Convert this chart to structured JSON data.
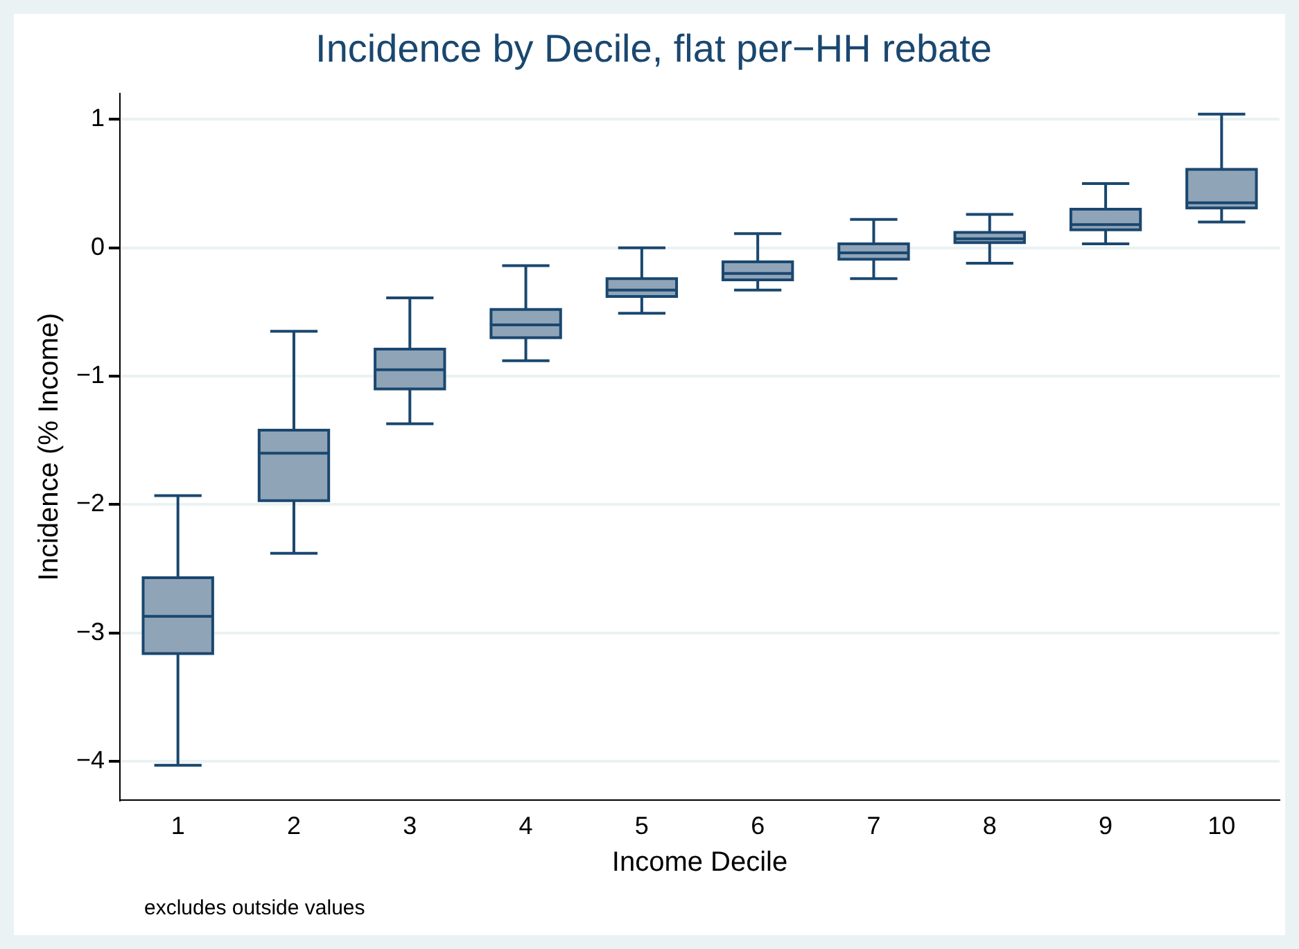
{
  "chart_data": {
    "type": "box",
    "title": "Incidence by Decile, flat per−HH rebate",
    "xlabel": "Income Decile",
    "ylabel": "Incidence (% Income)",
    "annotations": [
      "excludes outside values"
    ],
    "categories": [
      "1",
      "2",
      "3",
      "4",
      "5",
      "6",
      "7",
      "8",
      "9",
      "10"
    ],
    "series": [
      {
        "color": "#90a4b8",
        "boxes": [
          {
            "low": -4.03,
            "q1": -3.16,
            "median": -2.87,
            "q3": -2.57,
            "high": -1.93
          },
          {
            "low": -2.38,
            "q1": -1.97,
            "median": -1.6,
            "q3": -1.42,
            "high": -0.65
          },
          {
            "low": -1.37,
            "q1": -1.1,
            "median": -0.95,
            "q3": -0.79,
            "high": -0.39
          },
          {
            "low": -0.88,
            "q1": -0.7,
            "median": -0.6,
            "q3": -0.48,
            "high": -0.14
          },
          {
            "low": -0.51,
            "q1": -0.38,
            "median": -0.33,
            "q3": -0.24,
            "high": 0
          },
          {
            "low": -0.33,
            "q1": -0.25,
            "median": -0.2,
            "q3": -0.11,
            "high": 0.11
          },
          {
            "low": -0.24,
            "q1": -0.09,
            "median": -0.04,
            "q3": 0.03,
            "high": 0.22
          },
          {
            "low": -0.12,
            "q1": 0.04,
            "median": 0.07,
            "q3": 0.12,
            "high": 0.26
          },
          {
            "low": 0.03,
            "q1": 0.14,
            "median": 0.18,
            "q3": 0.3,
            "high": 0.5
          },
          {
            "low": 0.2,
            "q1": 0.31,
            "median": 0.35,
            "q3": 0.61,
            "high": 1.04
          }
        ]
      }
    ],
    "ylim": [
      -4.3,
      1.2
    ],
    "yticks": [
      -4,
      -3,
      -2,
      -1,
      0,
      1
    ],
    "grid": "y",
    "legend": false
  }
}
